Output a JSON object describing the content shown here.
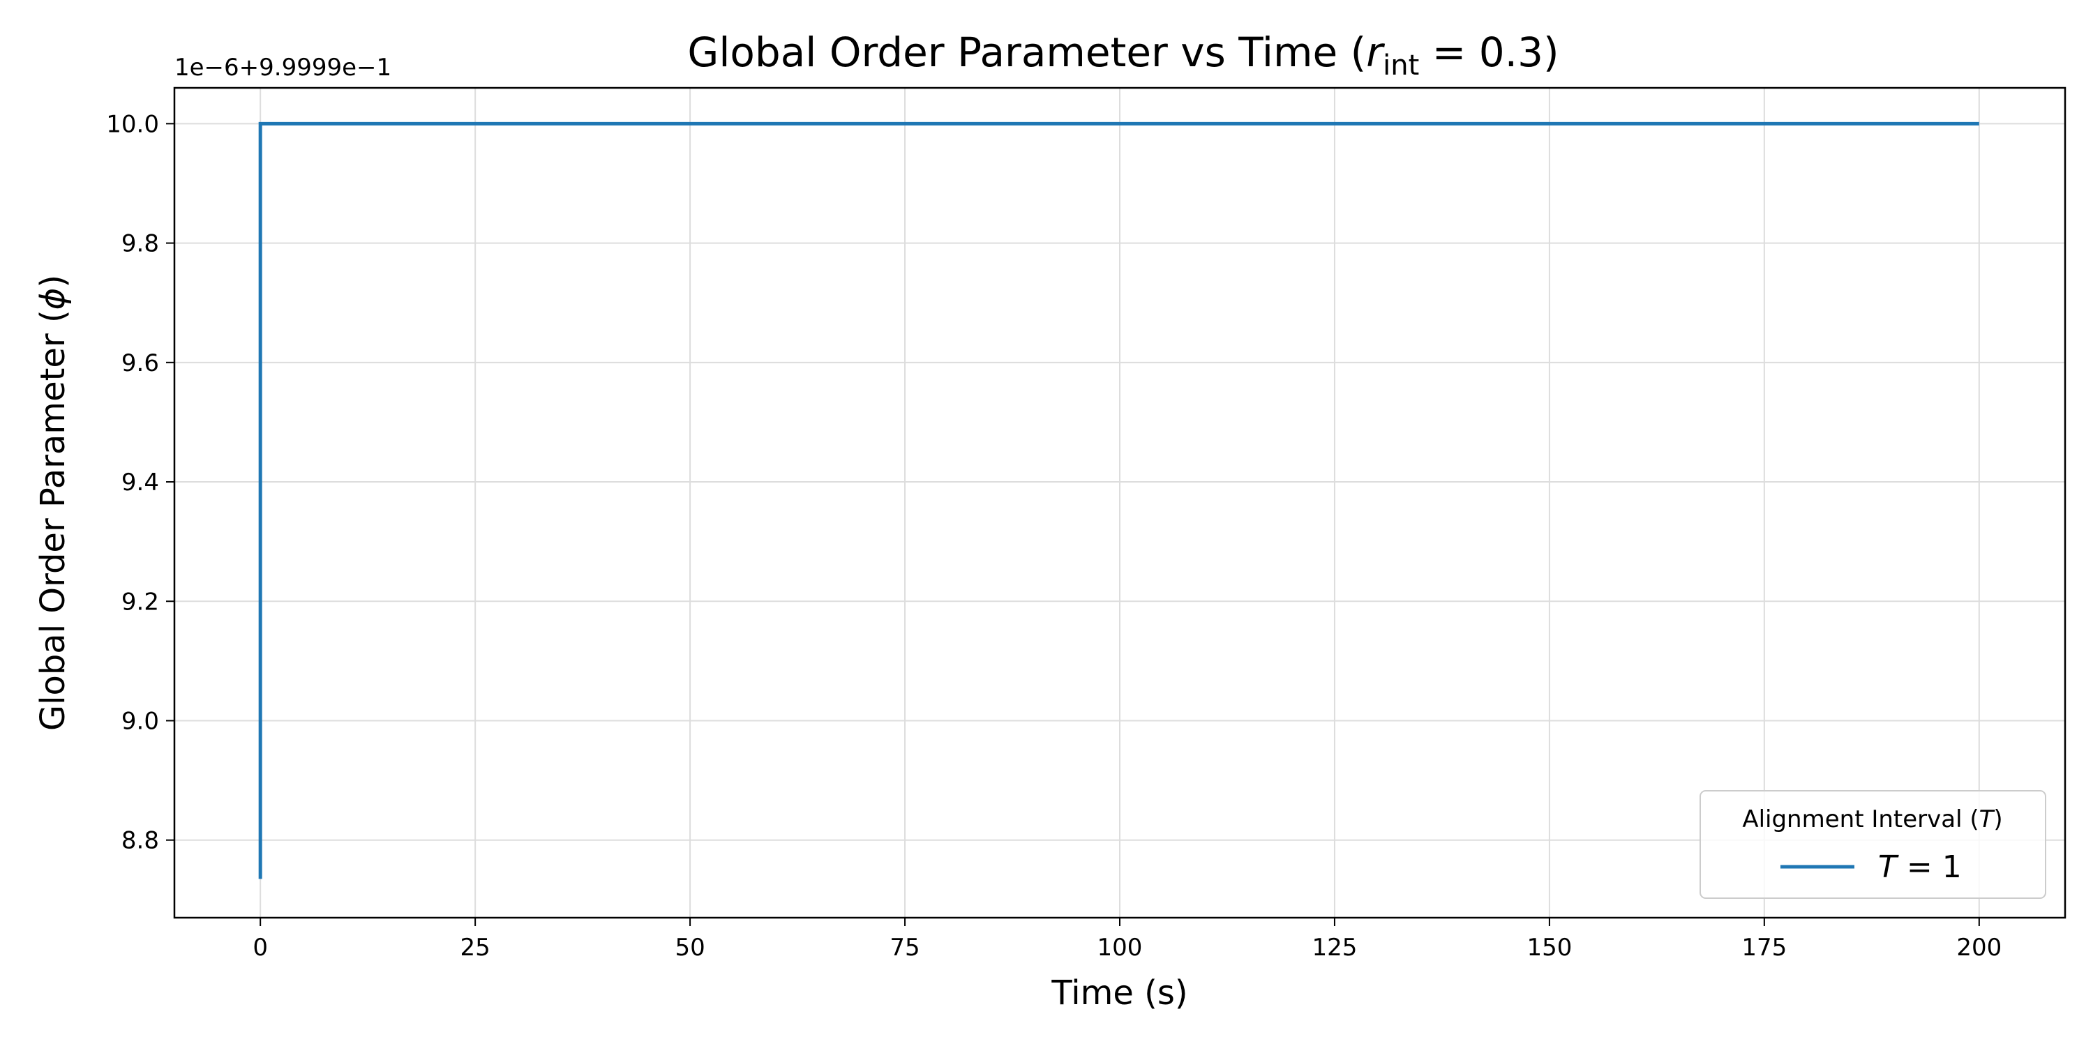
{
  "chart_data": {
    "type": "line",
    "title": {
      "prefix": "Global Order Parameter vs Time (",
      "symbol": "r",
      "subscript": "int",
      "suffix": " = 0.3)"
    },
    "xlabel": "Time (s)",
    "ylabel": {
      "prefix": "Global Order Parameter (",
      "symbol": "ϕ",
      "suffix": ")"
    },
    "y_offset_label": "1e−6+9.9999e−1",
    "xlim": [
      -10,
      210
    ],
    "ylim": [
      8.67,
      10.06
    ],
    "xticks": [
      0,
      25,
      50,
      75,
      100,
      125,
      150,
      175,
      200
    ],
    "xtick_labels": [
      "0",
      "25",
      "50",
      "75",
      "100",
      "125",
      "150",
      "175",
      "200"
    ],
    "yticks": [
      8.8,
      9.0,
      9.2,
      9.4,
      9.6,
      9.8,
      10.0
    ],
    "ytick_labels": [
      "8.8",
      "9.0",
      "9.2",
      "9.4",
      "9.6",
      "9.8",
      "10.0"
    ],
    "grid": true,
    "legend": {
      "placement": "lower-right",
      "title": {
        "prefix": "Alignment Interval (",
        "symbol": "T",
        "suffix": ")"
      },
      "entry": {
        "symbol": "T",
        "suffix": " = 1"
      }
    },
    "series": [
      {
        "color": "#1f77b4",
        "x": [
          0,
          0,
          1,
          200
        ],
        "y": [
          8.735,
          10.0,
          10.0,
          10.0
        ]
      }
    ]
  }
}
